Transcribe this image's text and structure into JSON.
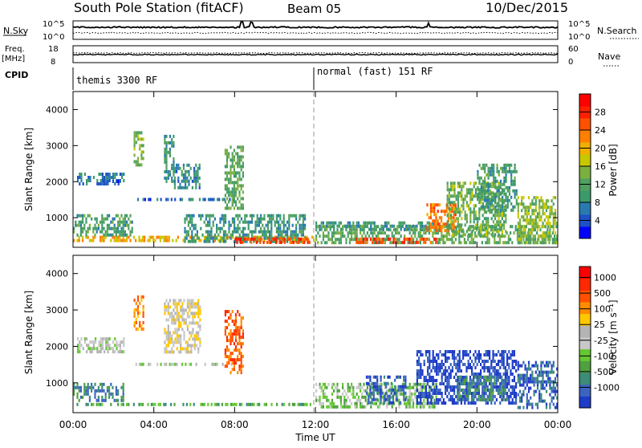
{
  "header": {
    "station": "South Pole Station (fitACF)",
    "beam": "Beam 05",
    "date": "10/Dec/2015"
  },
  "aux_panels": {
    "nsky": {
      "label": "N.Sky",
      "ticks": [
        "10^5",
        "10^0"
      ]
    },
    "nsearch": {
      "label": "N.Search",
      "ticks": [
        "10^5",
        "10^0"
      ]
    },
    "freq": {
      "label_line1": "Freq.",
      "label_line2": "[MHz]",
      "ticks": [
        "18",
        "8"
      ]
    },
    "nave": {
      "label": "Nave",
      "ticks": [
        "60",
        "0"
      ]
    },
    "cpid": {
      "label": "CPID",
      "segments": [
        {
          "name": "themis 3300 RF",
          "start_hour": 0
        },
        {
          "name": "normal (fast) 151 RF",
          "start_hour": 12
        }
      ]
    }
  },
  "chart_data": [
    {
      "type": "heatmap",
      "name": "power",
      "xlabel": "",
      "ylabel": "Slant Range [km]",
      "xlim": [
        0,
        24
      ],
      "ylim": [
        180,
        4500
      ],
      "yticks": [
        "1000",
        "2000",
        "3000",
        "4000"
      ],
      "colorbar": {
        "label": "Power [dB]",
        "range": [
          0,
          32
        ],
        "ticks": [
          "4",
          "8",
          "12",
          "16",
          "20",
          "24",
          "28"
        ],
        "colors": [
          "#0000ff",
          "#1e50c8",
          "#2a7ab0",
          "#3c9a6a",
          "#50a060",
          "#7ab040",
          "#c8c800",
          "#f0b000",
          "#ff8000",
          "#ff5000",
          "#ff2000",
          "#ff0000"
        ]
      },
      "regions": [
        {
          "t0": 0.0,
          "t1": 12.0,
          "r0": 300,
          "r1": 500,
          "level": 20
        },
        {
          "t0": 0.0,
          "t1": 3.0,
          "r0": 500,
          "r1": 1100,
          "level": 10
        },
        {
          "t0": 0.2,
          "t1": 2.6,
          "r0": 1850,
          "r1": 2250,
          "level": 6
        },
        {
          "t0": 1.5,
          "t1": 2.5,
          "r0": 1950,
          "r1": 2050,
          "level": 5
        },
        {
          "t0": 3.0,
          "t1": 3.5,
          "r0": 2400,
          "r1": 3400,
          "level": 14
        },
        {
          "t0": 4.5,
          "t1": 5.0,
          "r0": 2000,
          "r1": 3300,
          "level": 9
        },
        {
          "t0": 5.0,
          "t1": 6.3,
          "r0": 1800,
          "r1": 2500,
          "level": 8
        },
        {
          "t0": 3.0,
          "t1": 8.0,
          "r0": 1450,
          "r1": 1550,
          "level": 5
        },
        {
          "t0": 7.5,
          "t1": 8.5,
          "r0": 1200,
          "r1": 3000,
          "level": 12
        },
        {
          "t0": 5.5,
          "t1": 11.5,
          "r0": 300,
          "r1": 1100,
          "level": 9
        },
        {
          "t0": 8.0,
          "t1": 12.0,
          "r0": 300,
          "r1": 450,
          "level": 27
        },
        {
          "t0": 12.0,
          "t1": 24.0,
          "r0": 300,
          "r1": 800,
          "level": 12
        },
        {
          "t0": 14.0,
          "t1": 18.0,
          "r0": 300,
          "r1": 450,
          "level": 27
        },
        {
          "t0": 12.0,
          "t1": 18.0,
          "r0": 600,
          "r1": 900,
          "level": 9
        },
        {
          "t0": 17.5,
          "t1": 19.0,
          "r0": 600,
          "r1": 1400,
          "level": 24
        },
        {
          "t0": 18.5,
          "t1": 21.5,
          "r0": 500,
          "r1": 2000,
          "level": 13
        },
        {
          "t0": 20.0,
          "t1": 22.0,
          "r0": 1200,
          "r1": 2500,
          "level": 10
        },
        {
          "t0": 22.0,
          "t1": 24.0,
          "r0": 300,
          "r1": 1600,
          "level": 15
        }
      ]
    },
    {
      "type": "heatmap",
      "name": "velocity",
      "xlabel": "Time UT",
      "ylabel": "Slant Range [km]",
      "xlim": [
        0,
        24
      ],
      "ylim": [
        180,
        4500
      ],
      "yticks": [
        "1000",
        "2000",
        "3000",
        "4000"
      ],
      "xticks": [
        "00:00",
        "04:00",
        "08:00",
        "12:00",
        "16:00",
        "20:00",
        "00:00"
      ],
      "colorbar": {
        "label": "Velocity [m s⁻¹]",
        "ticks": [
          "1000",
          "500",
          "100",
          "25",
          "-25",
          "-100",
          "-500",
          "-1000"
        ],
        "colors": [
          "#1e3cc8",
          "#3c64c0",
          "#3c8c78",
          "#50a040",
          "#64c832",
          "#c8c8c8",
          "#b4b4b4",
          "#ffc800",
          "#ff8c00",
          "#ff5000",
          "#ff2800",
          "#ff0000"
        ]
      },
      "regions": [
        {
          "t0": 0.0,
          "t1": 12.0,
          "r0": 350,
          "r1": 450,
          "level": 3
        },
        {
          "t0": 0.0,
          "t1": 2.5,
          "r0": 500,
          "r1": 1000,
          "level": 2
        },
        {
          "t0": 0.2,
          "t1": 2.6,
          "r0": 1850,
          "r1": 2250,
          "level": 5
        },
        {
          "t0": 3.0,
          "t1": 3.5,
          "r0": 2400,
          "r1": 3400,
          "level": 8
        },
        {
          "t0": 4.5,
          "t1": 6.3,
          "r0": 1800,
          "r1": 3300,
          "level": 6
        },
        {
          "t0": 3.0,
          "t1": 8.0,
          "r0": 1450,
          "r1": 1550,
          "level": 5
        },
        {
          "t0": 7.5,
          "t1": 8.5,
          "r0": 1200,
          "r1": 3000,
          "level": 9
        },
        {
          "t0": 12.0,
          "t1": 18.0,
          "r0": 300,
          "r1": 1000,
          "level": 4
        },
        {
          "t0": 14.5,
          "t1": 16.5,
          "r0": 400,
          "r1": 1200,
          "level": 1
        },
        {
          "t0": 17.0,
          "t1": 22.0,
          "r0": 400,
          "r1": 1900,
          "level": 0
        },
        {
          "t0": 19.0,
          "t1": 21.5,
          "r0": 500,
          "r1": 1200,
          "level": 2
        },
        {
          "t0": 22.0,
          "t1": 24.0,
          "r0": 300,
          "r1": 1600,
          "level": 1
        }
      ]
    }
  ]
}
